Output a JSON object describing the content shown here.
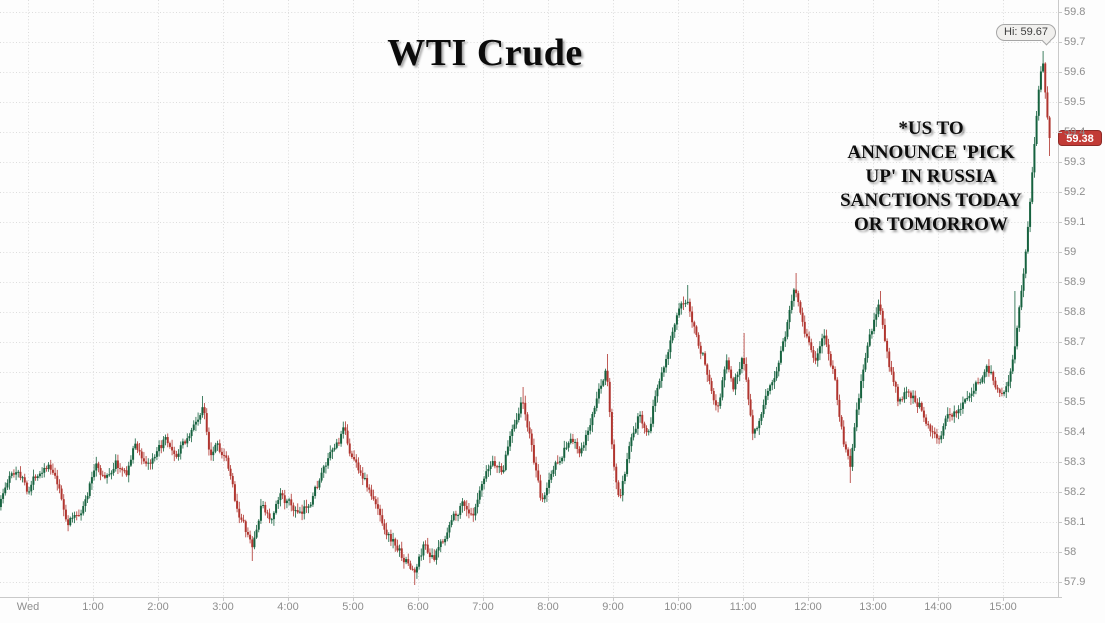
{
  "chart": {
    "title": "WTI Crude",
    "annotation": "*US TO\nANNOUNCE 'PICK\nUP' IN RUSSIA\nSANCTIONS TODAY\nOR TOMORROW",
    "hi_label": "Hi: 59.67",
    "last_price_label": "59.38"
  },
  "chart_data": {
    "type": "candlestick",
    "title": "WTI Crude",
    "interval_minutes": 2,
    "session_high": 59.67,
    "last_price": 59.38,
    "ylim": [
      57.9,
      59.8
    ],
    "grid": "dotted",
    "x_ticks": [
      "Wed",
      "1:00",
      "2:00",
      "3:00",
      "4:00",
      "5:00",
      "6:00",
      "7:00",
      "8:00",
      "9:00",
      "10:00",
      "11:00",
      "12:00",
      "13:00",
      "14:00",
      "15:00"
    ],
    "y_ticks": [
      "59.8",
      "59.7",
      "59.6",
      "59.5",
      "59.4",
      "59.3",
      "59.2",
      "59.1",
      "59",
      "58.9",
      "58.8",
      "58.7",
      "58.6",
      "58.5",
      "58.4",
      "58.3",
      "58.2",
      "58.1",
      "58",
      "57.9"
    ],
    "colors": {
      "up": "#16623f",
      "down": "#b0352f",
      "grid": "#dcdcdc",
      "axis": "#c9c9c9",
      "label": "#8e8e8e",
      "badge": "#c23b36",
      "title": "#0b0b0b"
    },
    "t_start": -0.45,
    "t_end": 15.72,
    "anchors": [
      [
        -0.45,
        58.16
      ],
      [
        -0.3,
        58.24
      ],
      [
        -0.15,
        58.28
      ],
      [
        0,
        58.21
      ],
      [
        0.15,
        58.27
      ],
      [
        0.3,
        58.3
      ],
      [
        0.45,
        58.22
      ],
      [
        0.6,
        58.1
      ],
      [
        0.75,
        58.12
      ],
      [
        0.9,
        58.18
      ],
      [
        1.05,
        58.3
      ],
      [
        1.2,
        58.24
      ],
      [
        1.35,
        58.3
      ],
      [
        1.5,
        58.25
      ],
      [
        1.65,
        58.36
      ],
      [
        1.8,
        58.3
      ],
      [
        1.95,
        58.3
      ],
      [
        2.1,
        58.37
      ],
      [
        2.25,
        58.3
      ],
      [
        2.4,
        58.36
      ],
      [
        2.55,
        58.42
      ],
      [
        2.7,
        58.48
      ],
      [
        2.8,
        58.33
      ],
      [
        2.9,
        58.38
      ],
      [
        3.05,
        58.3
      ],
      [
        3.2,
        58.16
      ],
      [
        3.45,
        58.01
      ],
      [
        3.6,
        58.16
      ],
      [
        3.75,
        58.1
      ],
      [
        3.9,
        58.19
      ],
      [
        4.05,
        58.15
      ],
      [
        4.2,
        58.11
      ],
      [
        4.35,
        58.18
      ],
      [
        4.5,
        58.25
      ],
      [
        4.65,
        58.31
      ],
      [
        4.85,
        58.4
      ],
      [
        5.0,
        58.31
      ],
      [
        5.15,
        58.26
      ],
      [
        5.35,
        58.15
      ],
      [
        5.55,
        58.06
      ],
      [
        5.75,
        57.99
      ],
      [
        5.95,
        57.93
      ],
      [
        6.1,
        58.03
      ],
      [
        6.25,
        57.97
      ],
      [
        6.4,
        58.05
      ],
      [
        6.55,
        58.12
      ],
      [
        6.7,
        58.17
      ],
      [
        6.85,
        58.11
      ],
      [
        7.0,
        58.22
      ],
      [
        7.15,
        58.3
      ],
      [
        7.3,
        58.27
      ],
      [
        7.45,
        58.42
      ],
      [
        7.6,
        58.51
      ],
      [
        7.75,
        58.35
      ],
      [
        7.9,
        58.15
      ],
      [
        8.05,
        58.26
      ],
      [
        8.2,
        58.33
      ],
      [
        8.35,
        58.38
      ],
      [
        8.5,
        58.32
      ],
      [
        8.65,
        58.42
      ],
      [
        8.8,
        58.54
      ],
      [
        8.9,
        58.62
      ],
      [
        9.0,
        58.3
      ],
      [
        9.1,
        58.17
      ],
      [
        9.25,
        58.33
      ],
      [
        9.4,
        58.45
      ],
      [
        9.55,
        58.41
      ],
      [
        9.7,
        58.57
      ],
      [
        9.85,
        58.69
      ],
      [
        10.0,
        58.78
      ],
      [
        10.15,
        58.85
      ],
      [
        10.3,
        58.72
      ],
      [
        10.45,
        58.61
      ],
      [
        10.6,
        58.49
      ],
      [
        10.75,
        58.64
      ],
      [
        10.85,
        58.55
      ],
      [
        11.0,
        58.66
      ],
      [
        11.15,
        58.41
      ],
      [
        11.3,
        58.46
      ],
      [
        11.5,
        58.6
      ],
      [
        11.65,
        58.73
      ],
      [
        11.8,
        58.89
      ],
      [
        11.95,
        58.75
      ],
      [
        12.1,
        58.64
      ],
      [
        12.25,
        58.71
      ],
      [
        12.4,
        58.6
      ],
      [
        12.55,
        58.36
      ],
      [
        12.65,
        58.29
      ],
      [
        12.8,
        58.54
      ],
      [
        12.95,
        58.71
      ],
      [
        13.1,
        58.83
      ],
      [
        13.25,
        58.62
      ],
      [
        13.4,
        58.49
      ],
      [
        13.55,
        58.54
      ],
      [
        13.7,
        58.5
      ],
      [
        13.85,
        58.44
      ],
      [
        14.0,
        58.38
      ],
      [
        14.15,
        58.44
      ],
      [
        14.3,
        58.48
      ],
      [
        14.45,
        58.52
      ],
      [
        14.6,
        58.56
      ],
      [
        14.75,
        58.62
      ],
      [
        14.9,
        58.56
      ],
      [
        15.0,
        58.53
      ],
      [
        15.1,
        58.6
      ],
      [
        15.17,
        58.66
      ],
      [
        15.25,
        58.82
      ],
      [
        15.33,
        58.96
      ],
      [
        15.42,
        59.18
      ],
      [
        15.5,
        59.42
      ],
      [
        15.57,
        59.6
      ],
      [
        15.62,
        59.64
      ],
      [
        15.67,
        59.48
      ],
      [
        15.72,
        59.38
      ]
    ],
    "forced_wicks": [
      {
        "t": 2.7,
        "hi": 58.52
      },
      {
        "t": 3.45,
        "lo": 57.97
      },
      {
        "t": 5.95,
        "lo": 57.89
      },
      {
        "t": 7.6,
        "hi": 58.55
      },
      {
        "t": 8.9,
        "hi": 58.66
      },
      {
        "t": 10.15,
        "hi": 58.89
      },
      {
        "t": 11.0,
        "hi": 58.73
      },
      {
        "t": 11.8,
        "hi": 58.93
      },
      {
        "t": 12.65,
        "lo": 58.23
      },
      {
        "t": 13.1,
        "hi": 58.87
      },
      {
        "t": 15.17,
        "hi": 58.87
      },
      {
        "t": 15.62,
        "hi": 59.67
      },
      {
        "t": 15.72,
        "lo": 59.32
      }
    ]
  }
}
